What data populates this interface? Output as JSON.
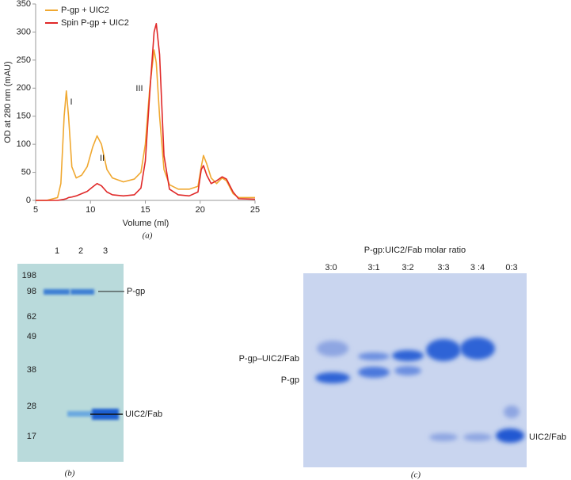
{
  "chart_data": {
    "type": "line",
    "panel_label": "(a)",
    "x_label": "Volume (ml)",
    "y_label": "OD at 280 nm (mAU)",
    "xlim": [
      5,
      25
    ],
    "xticks": [
      5,
      10,
      15,
      20,
      25
    ],
    "ylim": [
      0,
      350
    ],
    "yticks": [
      0,
      50,
      100,
      150,
      200,
      250,
      300,
      350
    ],
    "legend": "upper left",
    "annotations": [
      "I",
      "II",
      "III"
    ],
    "x": [
      5,
      6,
      7,
      7.3,
      7.6,
      7.8,
      8,
      8.3,
      8.7,
      9.2,
      9.7,
      10.2,
      10.6,
      11,
      11.5,
      12,
      13,
      14,
      14.6,
      15,
      15.4,
      15.8,
      16,
      16.3,
      16.7,
      17.2,
      18,
      19,
      19.8,
      20.1,
      20.3,
      20.6,
      21,
      21.5,
      22,
      22.4,
      23,
      23.5,
      25
    ],
    "series": [
      {
        "name": "P-gp + UIC2",
        "color": "#f0a830",
        "values": [
          0,
          0,
          5,
          30,
          150,
          195,
          150,
          60,
          40,
          45,
          60,
          95,
          115,
          100,
          55,
          40,
          33,
          38,
          50,
          100,
          200,
          268,
          245,
          150,
          55,
          28,
          20,
          20,
          25,
          60,
          80,
          65,
          40,
          30,
          40,
          35,
          12,
          5,
          5
        ]
      },
      {
        "name": "Spin P-gp + UIC2",
        "color": "#e02828",
        "values": [
          0,
          0,
          0,
          1,
          2,
          3,
          5,
          6,
          8,
          12,
          16,
          24,
          30,
          26,
          15,
          10,
          8,
          10,
          22,
          70,
          190,
          300,
          315,
          260,
          80,
          20,
          10,
          8,
          15,
          55,
          62,
          45,
          30,
          35,
          42,
          38,
          15,
          3,
          2
        ]
      }
    ]
  },
  "gel_b": {
    "panel_label": "(b)",
    "lanes": [
      "1",
      "2",
      "3"
    ],
    "markers": [
      "198",
      "98",
      "62",
      "49",
      "38",
      "28",
      "17"
    ],
    "band_labels": [
      "P-gp",
      "UIC2/Fab"
    ]
  },
  "gel_c": {
    "title": "P-gp:UIC2/Fab molar ratio",
    "panel_label": "(c)",
    "lanes": [
      "3:0",
      "3:1",
      "3:2",
      "3:3",
      "3 :4",
      "0:3"
    ],
    "left_labels": [
      "P-gp–UIC2/Fab",
      "P-gp"
    ],
    "right_labels": [
      "UIC2/Fab"
    ]
  }
}
